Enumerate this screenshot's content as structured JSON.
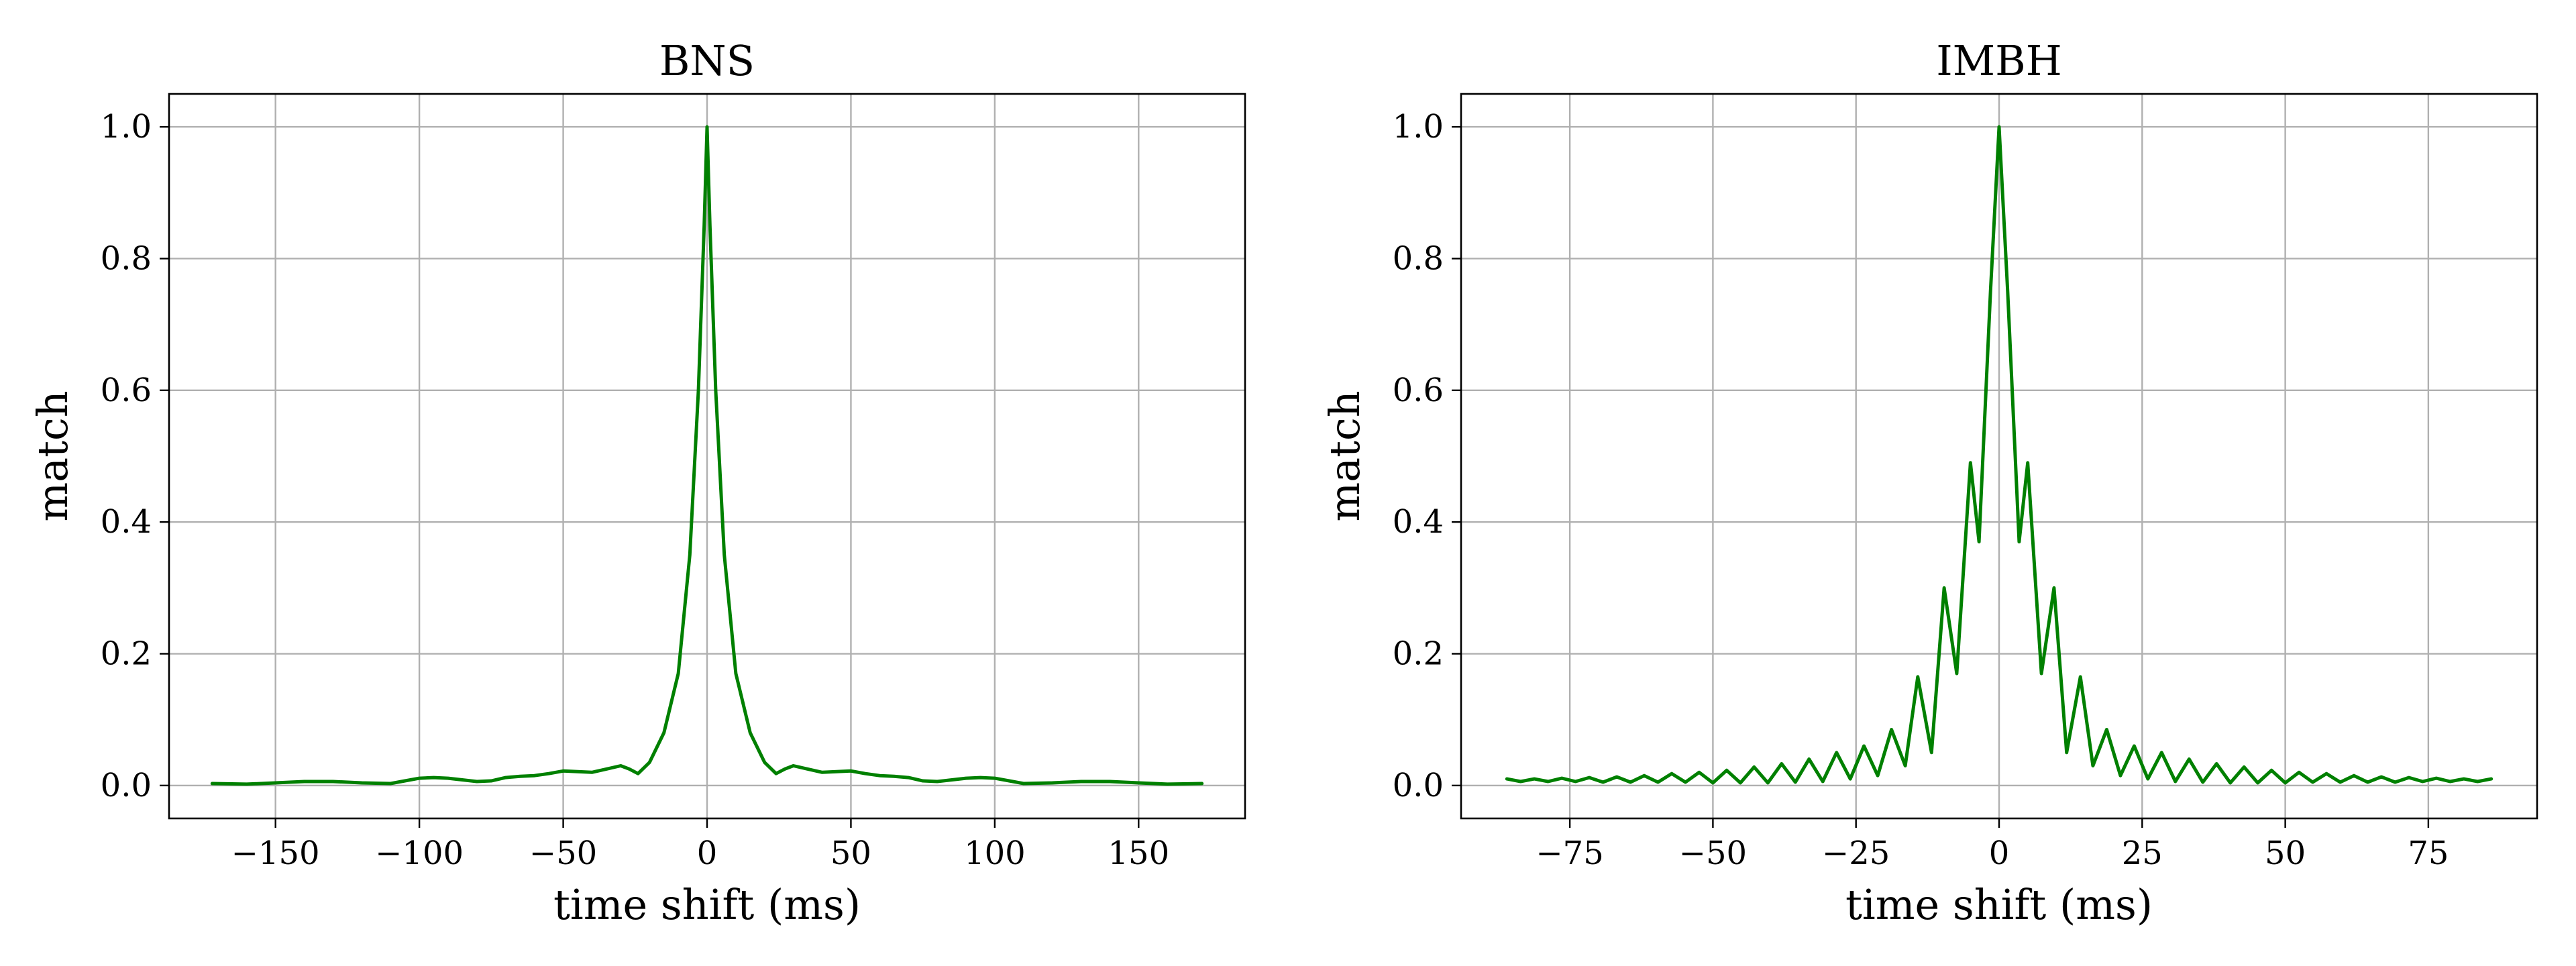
{
  "chart_data": [
    {
      "type": "line",
      "title": "BNS",
      "xlabel": "time shift (ms)",
      "ylabel": "match",
      "xlim": [
        -187,
        187
      ],
      "ylim": [
        -0.05,
        1.05
      ],
      "xticks": [
        -150,
        -100,
        -50,
        0,
        50,
        100,
        150
      ],
      "xtick_labels": [
        "−150",
        "−100",
        "−50",
        "0",
        "50",
        "100",
        "150"
      ],
      "yticks": [
        0.0,
        0.2,
        0.4,
        0.6,
        0.8,
        1.0
      ],
      "ytick_labels": [
        "0.0",
        "0.2",
        "0.4",
        "0.6",
        "0.8",
        "1.0"
      ],
      "grid": true,
      "line_color": "#008000",
      "series": [
        {
          "x": [
            -172,
            -160,
            -150,
            -140,
            -130,
            -120,
            -110,
            -105,
            -100,
            -95,
            -90,
            -80,
            -75,
            -70,
            -65,
            -60,
            -55,
            -50,
            -45,
            -40,
            -35,
            -30,
            -27,
            -24,
            -20,
            -15,
            -10,
            -6,
            -3,
            -1,
            0,
            1,
            3,
            6,
            10,
            15,
            20,
            24,
            27,
            30,
            35,
            40,
            45,
            50,
            55,
            60,
            65,
            70,
            75,
            80,
            90,
            95,
            100,
            105,
            110,
            120,
            130,
            140,
            150,
            160,
            172
          ],
          "y": [
            0.003,
            0.002,
            0.004,
            0.006,
            0.006,
            0.004,
            0.003,
            0.007,
            0.011,
            0.012,
            0.011,
            0.006,
            0.007,
            0.012,
            0.014,
            0.015,
            0.018,
            0.022,
            0.021,
            0.02,
            0.025,
            0.03,
            0.025,
            0.018,
            0.035,
            0.08,
            0.17,
            0.35,
            0.6,
            0.85,
            1.0,
            0.85,
            0.6,
            0.35,
            0.17,
            0.08,
            0.035,
            0.018,
            0.025,
            0.03,
            0.025,
            0.02,
            0.021,
            0.022,
            0.018,
            0.015,
            0.014,
            0.012,
            0.007,
            0.006,
            0.011,
            0.012,
            0.011,
            0.007,
            0.003,
            0.004,
            0.006,
            0.006,
            0.004,
            0.002,
            0.003
          ]
        }
      ]
    },
    {
      "type": "line",
      "title": "IMBH",
      "xlabel": "time shift (ms)",
      "ylabel": "match",
      "xlim": [
        -94,
        94
      ],
      "ylim": [
        -0.05,
        1.05
      ],
      "xticks": [
        -75,
        -50,
        -25,
        0,
        25,
        50,
        75
      ],
      "xtick_labels": [
        "−75",
        "−50",
        "−25",
        "0",
        "25",
        "50",
        "75"
      ],
      "yticks": [
        0.0,
        0.2,
        0.4,
        0.6,
        0.8,
        1.0
      ],
      "ytick_labels": [
        "0.0",
        "0.2",
        "0.4",
        "0.6",
        "0.8",
        "1.0"
      ],
      "grid": true,
      "line_color": "#008000",
      "series": [
        {
          "x": [
            -86,
            -83.6,
            -81.2,
            -78.8,
            -76.4,
            -74,
            -71.6,
            -69.2,
            -66.8,
            -64.4,
            -62,
            -59.6,
            -57.2,
            -54.8,
            -52.4,
            -50,
            -47.6,
            -45.2,
            -42.8,
            -40.4,
            -38,
            -35.6,
            -33.2,
            -30.8,
            -28.4,
            -26,
            -23.6,
            -21.2,
            -18.8,
            -16.4,
            -14.2,
            -11.8,
            -9.6,
            -7.4,
            -5,
            -3.5,
            -1.5,
            0,
            1.5,
            3.5,
            5,
            7.4,
            9.6,
            11.8,
            14.2,
            16.4,
            18.8,
            21.2,
            23.6,
            26,
            28.4,
            30.8,
            33.2,
            35.6,
            38,
            40.4,
            42.8,
            45.2,
            47.6,
            50,
            52.4,
            54.8,
            57.2,
            59.6,
            62,
            64.4,
            66.8,
            69.2,
            71.6,
            74,
            76.4,
            78.8,
            81.2,
            83.6,
            86
          ],
          "y": [
            0.01,
            0.006,
            0.01,
            0.006,
            0.011,
            0.006,
            0.012,
            0.005,
            0.013,
            0.005,
            0.015,
            0.005,
            0.018,
            0.005,
            0.02,
            0.004,
            0.023,
            0.004,
            0.028,
            0.004,
            0.033,
            0.005,
            0.04,
            0.006,
            0.05,
            0.01,
            0.06,
            0.015,
            0.085,
            0.03,
            0.165,
            0.05,
            0.3,
            0.17,
            0.49,
            0.37,
            0.75,
            1.0,
            0.75,
            0.37,
            0.49,
            0.17,
            0.3,
            0.05,
            0.165,
            0.03,
            0.085,
            0.015,
            0.06,
            0.01,
            0.05,
            0.006,
            0.04,
            0.005,
            0.033,
            0.004,
            0.028,
            0.004,
            0.023,
            0.004,
            0.02,
            0.005,
            0.018,
            0.005,
            0.015,
            0.005,
            0.013,
            0.005,
            0.012,
            0.006,
            0.011,
            0.006,
            0.01,
            0.006,
            0.01
          ]
        }
      ]
    }
  ]
}
